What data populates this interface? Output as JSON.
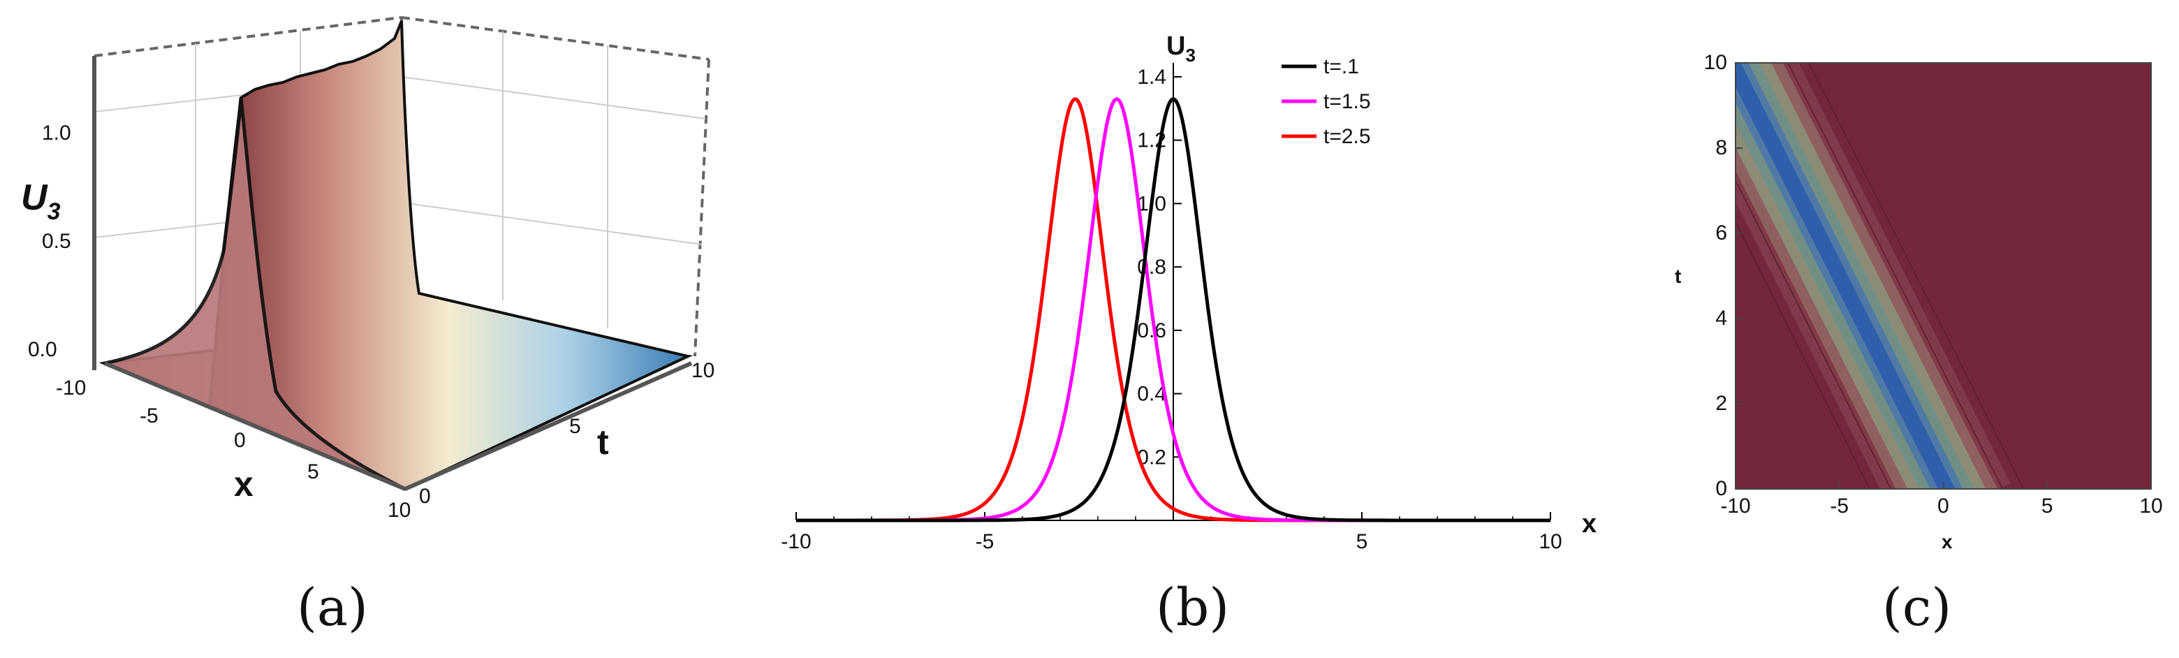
{
  "chart_data": [
    {
      "panel": "(a)",
      "type": "surface3d",
      "zlabel_main": "U",
      "zlabel_sub": "3",
      "xlabel": "x",
      "ylabel": "t",
      "x_ticks": [
        "-10",
        "-5",
        "0",
        "5",
        "10"
      ],
      "t_ticks": [
        "0",
        "5",
        "10"
      ],
      "z_ticks": [
        "0.0",
        "0.5",
        "1.0"
      ],
      "xlim": [
        -10,
        10
      ],
      "tlim": [
        0,
        10
      ],
      "zlim": [
        0,
        1.35
      ],
      "peak": 1.33,
      "colormap": [
        "#7a2e36",
        "#d9a08a",
        "#f4ecd0",
        "#a9d0e6",
        "#3c7cb5"
      ]
    },
    {
      "panel": "(b)",
      "type": "line",
      "ylabel_main": "U",
      "ylabel_sub": "3",
      "xlabel": "x",
      "xlim": [
        -10,
        10
      ],
      "ylim": [
        0,
        1.4
      ],
      "x_ticks": [
        "-10",
        "-5",
        "5",
        "10"
      ],
      "y_ticks": [
        "0.2",
        "0.4",
        "0.6",
        "0.8",
        "1.0",
        "1.2",
        "1.4"
      ],
      "legend_position": "top-right",
      "amplitude": 1.33,
      "series": [
        {
          "name": "t=.1",
          "color": "#000000",
          "center": 0.0
        },
        {
          "name": "t=1.5",
          "color": "#ff00ff",
          "center": -1.5
        },
        {
          "name": "t=2.5",
          "color": "#ff0000",
          "center": -2.6
        }
      ]
    },
    {
      "panel": "(c)",
      "type": "heatmap",
      "xlabel": "x",
      "ylabel": "t",
      "xlim": [
        -10,
        10
      ],
      "ylim": [
        0,
        10
      ],
      "x_ticks": [
        "-10",
        "-5",
        "0",
        "5",
        "10"
      ],
      "y_ticks": [
        "0",
        "2",
        "4",
        "6",
        "8",
        "10"
      ],
      "background_color": "#74273a",
      "ridge_color": "#2f5faa",
      "ridge_from": {
        "x": 0,
        "t": 0
      },
      "ridge_to": {
        "x": -10,
        "t": 10
      }
    }
  ]
}
